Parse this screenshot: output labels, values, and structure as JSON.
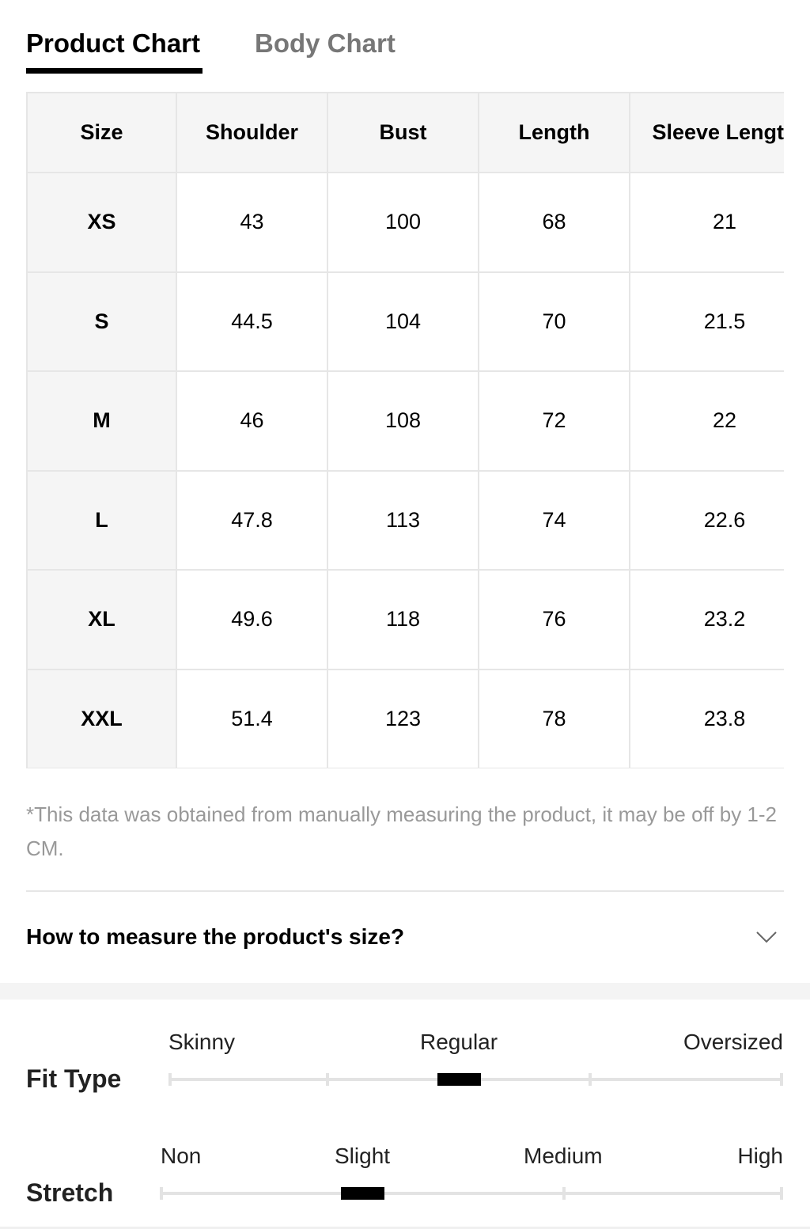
{
  "tabs": [
    "Product Chart",
    "Body Chart"
  ],
  "table": {
    "header": [
      "Size",
      "Shoulder",
      "Bust",
      "Length",
      "Sleeve Length"
    ],
    "rows": [
      [
        "XS",
        "43",
        "100",
        "68",
        "21"
      ],
      [
        "S",
        "44.5",
        "104",
        "70",
        "21.5"
      ],
      [
        "M",
        "46",
        "108",
        "72",
        "22"
      ],
      [
        "L",
        "47.8",
        "113",
        "74",
        "22.6"
      ],
      [
        "XL",
        "49.6",
        "118",
        "76",
        "23.2"
      ],
      [
        "XXL",
        "51.4",
        "123",
        "78",
        "23.8"
      ]
    ]
  },
  "note": "*This data was obtained from manually measuring the product, it may be off by 1-2 CM.",
  "measure_title": "How to measure the product's size?",
  "fit": [
    {
      "label": "Fit Type",
      "scale": [
        "Skinny",
        "Regular",
        "Oversized"
      ]
    },
    {
      "label": "Stretch",
      "scale": [
        "Non",
        "Slight",
        "Medium",
        "High"
      ]
    }
  ]
}
